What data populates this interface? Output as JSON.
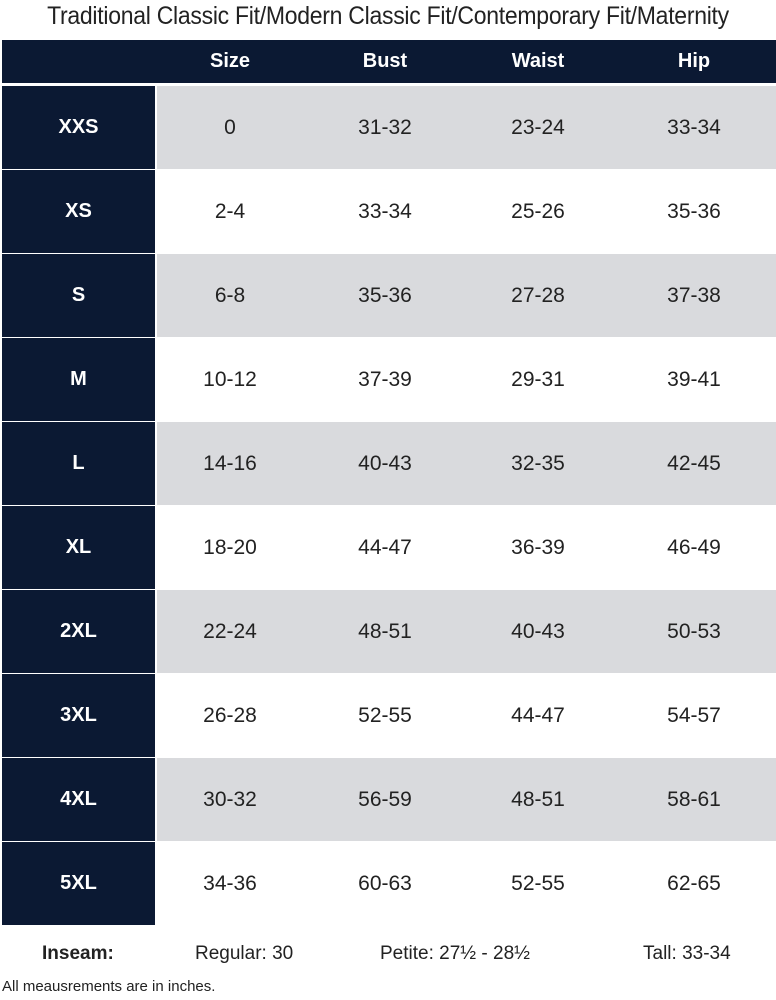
{
  "title": "Traditional Classic Fit/Modern Classic Fit/Contemporary Fit/Maternity",
  "colors": {
    "header": "#0b1933",
    "stripe": "#d9dadd"
  },
  "columns": [
    "Size",
    "Bust",
    "Waist",
    "Hip"
  ],
  "rows": [
    {
      "label": "XXS",
      "size": "0",
      "bust": "31-32",
      "waist": "23-24",
      "hip": "33-34"
    },
    {
      "label": "XS",
      "size": "2-4",
      "bust": "33-34",
      "waist": "25-26",
      "hip": "35-36"
    },
    {
      "label": "S",
      "size": "6-8",
      "bust": "35-36",
      "waist": "27-28",
      "hip": "37-38"
    },
    {
      "label": "M",
      "size": "10-12",
      "bust": "37-39",
      "waist": "29-31",
      "hip": "39-41"
    },
    {
      "label": "L",
      "size": "14-16",
      "bust": "40-43",
      "waist": "32-35",
      "hip": "42-45"
    },
    {
      "label": "XL",
      "size": "18-20",
      "bust": "44-47",
      "waist": "36-39",
      "hip": "46-49"
    },
    {
      "label": "2XL",
      "size": "22-24",
      "bust": "48-51",
      "waist": "40-43",
      "hip": "50-53"
    },
    {
      "label": "3XL",
      "size": "26-28",
      "bust": "52-55",
      "waist": "44-47",
      "hip": "54-57"
    },
    {
      "label": "4XL",
      "size": "30-32",
      "bust": "56-59",
      "waist": "48-51",
      "hip": "58-61"
    },
    {
      "label": "5XL",
      "size": "34-36",
      "bust": "60-63",
      "waist": "52-55",
      "hip": "62-65"
    }
  ],
  "inseam": {
    "label": "Inseam:",
    "regular": "Regular: 30",
    "petite": "Petite: 27½ - 28½",
    "tall": "Tall: 33-34"
  },
  "note": "All meausrements are in inches."
}
